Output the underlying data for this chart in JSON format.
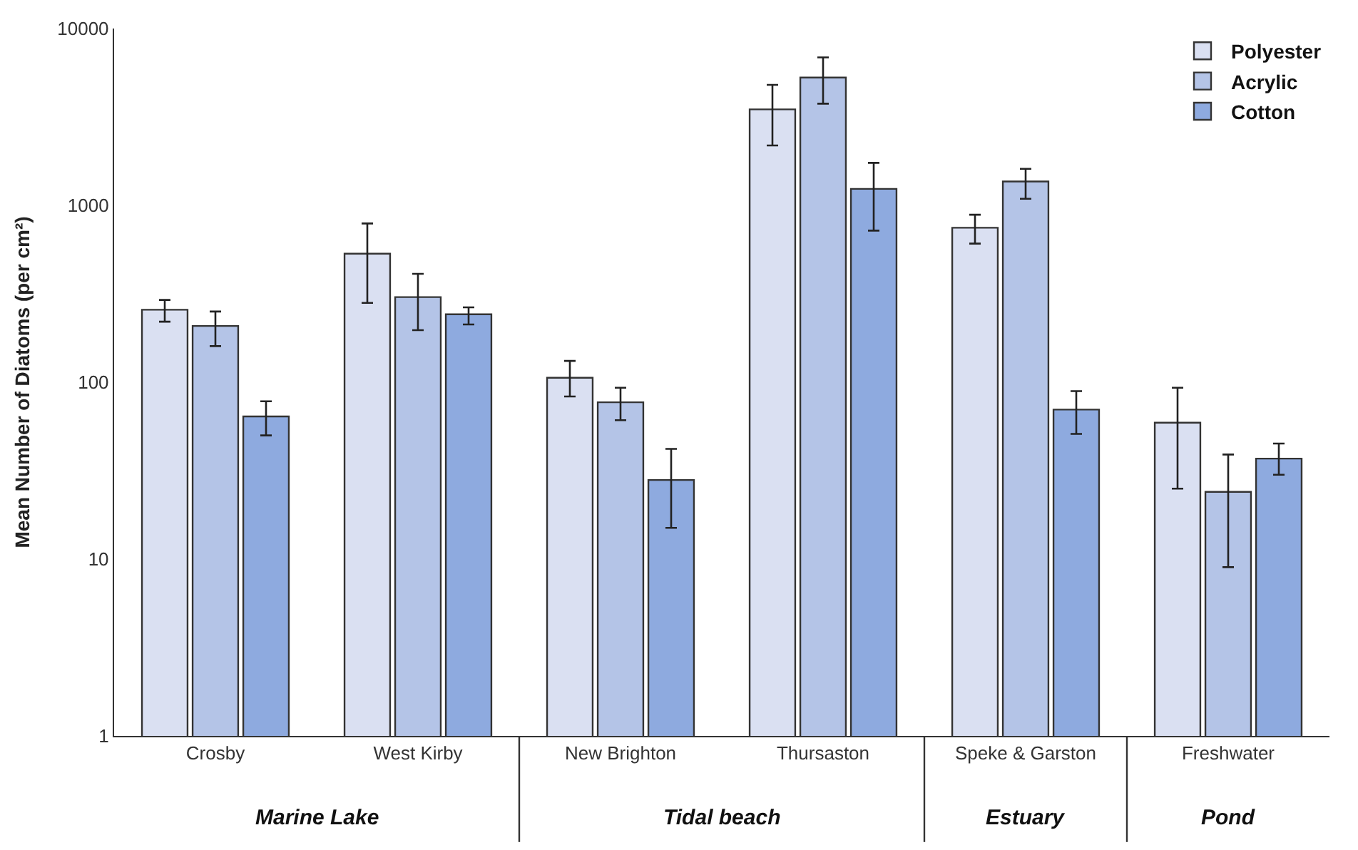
{
  "chart_data": {
    "type": "bar",
    "ylabel": "Mean Number of Diatoms (per cm²)",
    "categories": [
      "Crosby",
      "West Kirby",
      "New Brighton",
      "Thursaston",
      "Speke & Garston",
      "Freshwater"
    ],
    "series": [
      {
        "name": "Polyester",
        "color": "#dae0f2",
        "values": [
          257,
          533,
          106,
          3490,
          747,
          59
        ],
        "errors": [
          [
            220,
            292
          ],
          [
            281,
            790
          ],
          [
            83,
            132
          ],
          [
            2180,
            4800
          ],
          [
            608,
            885
          ],
          [
            25,
            93
          ]
        ]
      },
      {
        "name": "Acrylic",
        "color": "#b4c4e7",
        "values": [
          208,
          303,
          77,
          5280,
          1365,
          24
        ],
        "errors": [
          [
            160,
            251
          ],
          [
            197,
            410
          ],
          [
            61,
            93
          ],
          [
            3760,
            6870
          ],
          [
            1090,
            1610
          ],
          [
            9,
            39
          ]
        ]
      },
      {
        "name": "Cotton",
        "color": "#8eaadf",
        "values": [
          64,
          242,
          28,
          1240,
          70,
          37
        ],
        "errors": [
          [
            50,
            78
          ],
          [
            212,
            265
          ],
          [
            15,
            42
          ],
          [
            720,
            1740
          ],
          [
            51,
            89
          ],
          [
            30,
            45
          ]
        ]
      }
    ],
    "log": true,
    "ylim": [
      1,
      10000
    ],
    "yticks": [
      1,
      10,
      100,
      1000,
      10000
    ],
    "legend": "top right",
    "annotations": [
      "Marine Lake",
      "Tidal beach",
      "Estuary",
      "Pond"
    ]
  }
}
